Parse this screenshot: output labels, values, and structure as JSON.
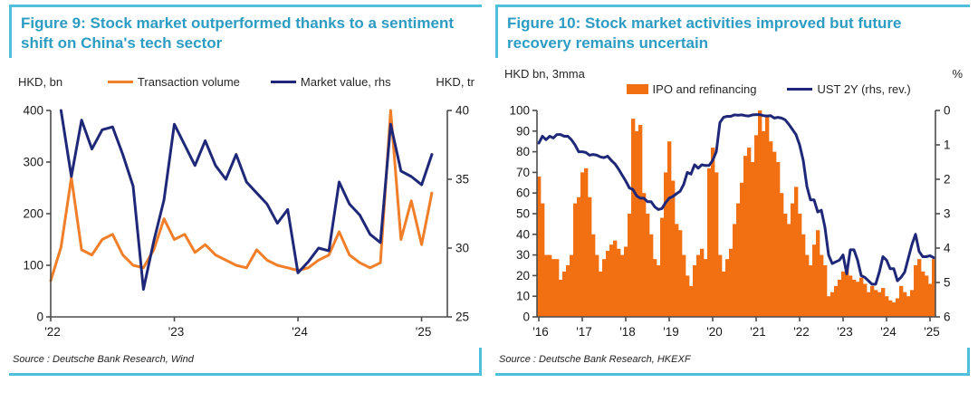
{
  "colors": {
    "accent_teal_title": "#2D9CC3",
    "frame_teal": "#4FBFDC",
    "orange_line": "#F17E28",
    "orange_bar": "#F26F12",
    "navy": "#1F2878",
    "axis": "#4d4d4d"
  },
  "chart_data": [
    {
      "id": "figure9",
      "type": "line",
      "title": "Figure 9: Stock market outperformed thanks to a sentiment shift on China's tech sector",
      "source": "Source : Deutsche Bank Research, Wind",
      "x_start": "2022-01",
      "x_end": "2025-02",
      "n_points": 38,
      "x_ticks": [
        {
          "label": "'22",
          "index": 0
        },
        {
          "label": "'23",
          "index": 12
        },
        {
          "label": "'24",
          "index": 24
        },
        {
          "label": "'25",
          "index": 36
        }
      ],
      "left_axis": {
        "label": "HKD, bn",
        "min": 0,
        "max": 400,
        "ticks": [
          0,
          100,
          200,
          300,
          400
        ]
      },
      "right_axis": {
        "label": "HKD, tr",
        "min": 25,
        "max": 40,
        "ticks": [
          25,
          30,
          35,
          40
        ],
        "reversed": false
      },
      "grid": false,
      "legend_position": "top",
      "series": [
        {
          "name": "Transaction volume",
          "type": "line",
          "axis": "left",
          "color": "#F17E28",
          "values": [
            70,
            135,
            270,
            130,
            120,
            150,
            160,
            120,
            100,
            95,
            130,
            190,
            150,
            160,
            125,
            140,
            120,
            110,
            100,
            95,
            130,
            110,
            100,
            95,
            90,
            95,
            110,
            120,
            165,
            120,
            105,
            95,
            105,
            400,
            150,
            225,
            140,
            240
          ]
        },
        {
          "name": "Market value, rhs",
          "type": "line",
          "axis": "right",
          "color": "#1F2878",
          "values": [
            null,
            40,
            35.2,
            39.3,
            37.2,
            38.6,
            38.8,
            36.8,
            34.5,
            27.0,
            30.5,
            33.5,
            39.0,
            37.5,
            36.0,
            37.8,
            36.0,
            35.0,
            36.8,
            34.8,
            34.0,
            33.2,
            31.8,
            32.8,
            28.2,
            29.0,
            30.0,
            29.8,
            34.8,
            33.2,
            32.4,
            31.0,
            30.4,
            39.0,
            35.6,
            35.2,
            34.6,
            36.8
          ]
        }
      ]
    },
    {
      "id": "figure10",
      "type": "bar+line",
      "title": "Figure 10: Stock market activities improved but future recovery remains uncertain",
      "source": "Source : Deutsche Bank Research, HKEXF",
      "x_start": "2016-01",
      "x_end": "2025-02",
      "n_points": 110,
      "x_ticks": [
        {
          "label": "'16",
          "index": 0
        },
        {
          "label": "'17",
          "index": 12
        },
        {
          "label": "'18",
          "index": 24
        },
        {
          "label": "'19",
          "index": 36
        },
        {
          "label": "'20",
          "index": 48
        },
        {
          "label": "'21",
          "index": 60
        },
        {
          "label": "'22",
          "index": 72
        },
        {
          "label": "'23",
          "index": 84
        },
        {
          "label": "'24",
          "index": 96
        },
        {
          "label": "'25",
          "index": 108
        }
      ],
      "left_axis": {
        "label": "HKD bn, 3mma",
        "min": 0,
        "max": 100,
        "ticks": [
          0,
          10,
          20,
          30,
          40,
          50,
          60,
          70,
          80,
          90,
          100
        ]
      },
      "right_axis": {
        "label": "%",
        "min": 0,
        "max": 6,
        "ticks": [
          0,
          1,
          2,
          3,
          4,
          5,
          6
        ],
        "reversed": true
      },
      "grid": false,
      "legend_position": "top",
      "series": [
        {
          "name": "IPO and refinancing",
          "type": "bar",
          "axis": "left",
          "color": "#F26F12",
          "values": [
            68,
            55,
            30,
            30,
            28,
            28,
            18,
            22,
            25,
            30,
            55,
            58,
            70,
            72,
            58,
            40,
            30,
            22,
            28,
            32,
            35,
            37,
            33,
            30,
            34,
            50,
            96,
            90,
            93,
            60,
            50,
            40,
            28,
            25,
            48,
            70,
            85,
            66,
            45,
            42,
            30,
            20,
            15,
            25,
            30,
            33,
            28,
            72,
            82,
            70,
            30,
            22,
            28,
            33,
            45,
            55,
            65,
            78,
            82,
            75,
            88,
            100,
            90,
            97,
            85,
            80,
            75,
            60,
            50,
            45,
            55,
            63,
            50,
            40,
            30,
            25,
            35,
            42,
            30,
            25,
            10,
            12,
            15,
            18,
            22,
            25,
            20,
            18,
            17,
            19,
            16,
            12,
            15,
            13,
            12,
            14,
            10,
            8,
            7,
            9,
            15,
            12,
            10,
            13,
            25,
            28,
            22,
            20,
            16,
            28
          ]
        },
        {
          "name": "UST 2Y (rhs, rev.)",
          "type": "line",
          "axis": "right",
          "color": "#1F2878",
          "values": [
            0.95,
            0.75,
            0.85,
            0.75,
            0.8,
            0.7,
            0.7,
            0.75,
            0.75,
            0.85,
            1.0,
            1.2,
            1.2,
            1.22,
            1.3,
            1.28,
            1.3,
            1.35,
            1.37,
            1.33,
            1.45,
            1.55,
            1.7,
            1.88,
            2.05,
            2.25,
            2.3,
            2.48,
            2.55,
            2.55,
            2.65,
            2.65,
            2.8,
            2.88,
            2.85,
            2.68,
            2.55,
            2.5,
            2.42,
            2.35,
            2.15,
            1.8,
            1.85,
            1.58,
            1.68,
            1.58,
            1.6,
            1.6,
            1.45,
            1.2,
            0.35,
            0.2,
            0.17,
            0.17,
            0.13,
            0.14,
            0.13,
            0.15,
            0.16,
            0.13,
            0.12,
            0.12,
            0.15,
            0.16,
            0.15,
            0.22,
            0.2,
            0.22,
            0.27,
            0.4,
            0.55,
            0.7,
            1.0,
            1.45,
            2.2,
            2.6,
            2.6,
            2.95,
            2.9,
            3.4,
            4.2,
            4.45,
            4.4,
            4.35,
            4.2,
            4.75,
            4.05,
            4.05,
            4.35,
            4.8,
            4.85,
            4.95,
            5.05,
            5.05,
            4.7,
            4.25,
            4.35,
            4.6,
            4.6,
            4.95,
            4.85,
            4.7,
            4.3,
            3.9,
            3.6,
            4.1,
            4.25,
            4.25,
            4.22,
            4.28
          ]
        }
      ]
    }
  ]
}
